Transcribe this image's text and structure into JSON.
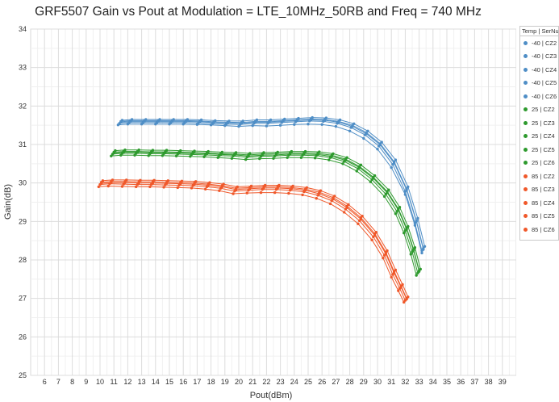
{
  "chart_data": {
    "type": "line",
    "title": "GRF5507 Gain vs Pout at Modulation = LTE_10MHz_50RB and Freq = 740 MHz",
    "xlabel": "Pout(dBm)",
    "ylabel": "Gain(dB)",
    "xlim": [
      5,
      40
    ],
    "ylim": [
      25,
      34
    ],
    "xticks": [
      6,
      7,
      8,
      9,
      10,
      11,
      12,
      13,
      14,
      15,
      16,
      17,
      18,
      19,
      20,
      21,
      22,
      23,
      24,
      25,
      26,
      27,
      28,
      29,
      30,
      31,
      32,
      33,
      34,
      35,
      36,
      37,
      38,
      39
    ],
    "yticks": [
      25,
      26,
      27,
      28,
      29,
      30,
      31,
      32,
      33,
      34
    ],
    "grid": true,
    "legend": {
      "title": "Temp | SerNum",
      "placement": "right"
    },
    "series": [
      {
        "name": "-40 | CZ2",
        "color": "#4f8ec6",
        "x": [
          11.3,
          12,
          13,
          14,
          15,
          16,
          17,
          18,
          19,
          20,
          21,
          22,
          23,
          24,
          25,
          26,
          27,
          28,
          29,
          30,
          31,
          32,
          32.7,
          33.2
        ],
        "y": [
          31.51,
          31.53,
          31.53,
          31.53,
          31.53,
          31.53,
          31.52,
          31.51,
          31.49,
          31.47,
          31.49,
          31.48,
          31.5,
          31.52,
          31.53,
          31.52,
          31.47,
          31.35,
          31.16,
          30.88,
          30.4,
          29.7,
          28.9,
          28.18
        ]
      },
      {
        "name": "-40 | CZ3",
        "color": "#4f8ec6",
        "x": [
          11.5,
          12.2,
          13.2,
          14.2,
          15.2,
          16.2,
          17.2,
          18.2,
          19.2,
          20.2,
          21.2,
          22.2,
          23.2,
          24.2,
          25.2,
          26.2,
          27.2,
          28.2,
          29.2,
          30.2,
          31.2,
          32.1,
          32.8,
          33.3
        ],
        "y": [
          31.6,
          31.62,
          31.62,
          31.62,
          31.62,
          31.62,
          31.61,
          31.59,
          31.58,
          31.57,
          31.6,
          31.6,
          31.62,
          31.64,
          31.66,
          31.65,
          31.6,
          31.5,
          31.31,
          31.02,
          30.55,
          29.85,
          29.02,
          28.3
        ]
      },
      {
        "name": "-40 | CZ4",
        "color": "#4f8ec6",
        "x": [
          11.6,
          12.3,
          13.3,
          14.3,
          15.3,
          16.3,
          17.3,
          18.3,
          19.3,
          20.3,
          21.3,
          22.3,
          23.3,
          24.3,
          25.3,
          26.3,
          27.3,
          28.3,
          29.3,
          30.3,
          31.3,
          32.2,
          32.9,
          33.4
        ],
        "y": [
          31.63,
          31.65,
          31.65,
          31.65,
          31.65,
          31.65,
          31.64,
          31.62,
          31.61,
          31.61,
          31.64,
          31.64,
          31.66,
          31.68,
          31.7,
          31.69,
          31.64,
          31.54,
          31.35,
          31.06,
          30.6,
          29.9,
          29.08,
          28.35
        ]
      },
      {
        "name": "-40 | CZ5",
        "color": "#4f8ec6",
        "x": [
          11.4,
          12.1,
          13.1,
          14.1,
          15.1,
          16.1,
          17.1,
          18.1,
          19.1,
          20.1,
          21.1,
          22.1,
          23.1,
          24.1,
          25.1,
          26.1,
          27.1,
          28.1,
          29.1,
          30.1,
          31.1,
          32,
          32.7,
          33.2
        ],
        "y": [
          31.55,
          31.57,
          31.57,
          31.57,
          31.57,
          31.57,
          31.56,
          31.54,
          31.53,
          31.52,
          31.55,
          31.55,
          31.57,
          31.59,
          31.61,
          31.6,
          31.55,
          31.44,
          31.25,
          30.96,
          30.48,
          29.78,
          28.96,
          28.24
        ]
      },
      {
        "name": "-40 | CZ6",
        "color": "#4f8ec6",
        "x": [
          11.5,
          12.2,
          13.2,
          14.2,
          15.2,
          16.2,
          17.2,
          18.2,
          19.2,
          20.2,
          21.2,
          22.2,
          23.2,
          24.2,
          25.2,
          26.2,
          27.2,
          28.2,
          29.2,
          30.2,
          31.2,
          32.1,
          32.8,
          33.3
        ],
        "y": [
          31.58,
          31.6,
          31.6,
          31.6,
          31.6,
          31.6,
          31.59,
          31.57,
          31.56,
          31.55,
          31.58,
          31.58,
          31.6,
          31.62,
          31.64,
          31.63,
          31.58,
          31.47,
          31.28,
          30.99,
          30.52,
          29.82,
          29,
          28.27
        ]
      },
      {
        "name": "25 | CZ2",
        "color": "#2e9a2e",
        "x": [
          10.8,
          11.5,
          12.5,
          13.5,
          14.5,
          15.5,
          16.5,
          17.5,
          18.5,
          19.5,
          20.5,
          21.5,
          22.5,
          23.5,
          24.5,
          25.5,
          26.5,
          27.5,
          28.5,
          29.5,
          30.5,
          31.3,
          31.9,
          32.4,
          32.8
        ],
        "y": [
          30.7,
          30.72,
          30.72,
          30.71,
          30.71,
          30.7,
          30.69,
          30.68,
          30.66,
          30.64,
          30.61,
          30.63,
          30.64,
          30.66,
          30.66,
          30.65,
          30.6,
          30.5,
          30.31,
          30.03,
          29.65,
          29.2,
          28.7,
          28.15,
          27.6
        ]
      },
      {
        "name": "25 | CZ3",
        "color": "#2e9a2e",
        "x": [
          11,
          11.7,
          12.7,
          13.7,
          14.7,
          15.7,
          16.7,
          17.7,
          18.7,
          19.7,
          20.7,
          21.7,
          22.7,
          23.7,
          24.7,
          25.7,
          26.7,
          27.7,
          28.7,
          29.7,
          30.7,
          31.5,
          32.1,
          32.6,
          33
        ],
        "y": [
          30.8,
          30.82,
          30.82,
          30.81,
          30.81,
          30.8,
          30.79,
          30.78,
          30.76,
          30.75,
          30.73,
          30.75,
          30.76,
          30.78,
          30.78,
          30.77,
          30.72,
          30.62,
          30.43,
          30.15,
          29.78,
          29.33,
          28.83,
          28.28,
          27.72
        ]
      },
      {
        "name": "25 | CZ4",
        "color": "#2e9a2e",
        "x": [
          11.1,
          11.8,
          12.8,
          13.8,
          14.8,
          15.8,
          16.8,
          17.8,
          18.8,
          19.8,
          20.8,
          21.8,
          22.8,
          23.8,
          24.8,
          25.8,
          26.8,
          27.8,
          28.8,
          29.8,
          30.8,
          31.6,
          32.2,
          32.7,
          33.1
        ],
        "y": [
          30.84,
          30.86,
          30.86,
          30.85,
          30.85,
          30.84,
          30.83,
          30.82,
          30.8,
          30.79,
          30.77,
          30.79,
          30.8,
          30.82,
          30.82,
          30.81,
          30.76,
          30.66,
          30.47,
          30.19,
          29.82,
          29.37,
          28.87,
          28.32,
          27.76
        ]
      },
      {
        "name": "25 | CZ5",
        "color": "#2e9a2e",
        "x": [
          10.9,
          11.6,
          12.6,
          13.6,
          14.6,
          15.6,
          16.6,
          17.6,
          18.6,
          19.6,
          20.6,
          21.6,
          22.6,
          23.6,
          24.6,
          25.6,
          26.6,
          27.6,
          28.6,
          29.6,
          30.6,
          31.4,
          32,
          32.5,
          32.9
        ],
        "y": [
          30.75,
          30.77,
          30.77,
          30.76,
          30.76,
          30.75,
          30.74,
          30.73,
          30.71,
          30.7,
          30.67,
          30.69,
          30.7,
          30.72,
          30.72,
          30.71,
          30.66,
          30.56,
          30.37,
          30.09,
          29.71,
          29.26,
          28.76,
          28.21,
          27.66
        ]
      },
      {
        "name": "25 | CZ6",
        "color": "#2e9a2e",
        "x": [
          11,
          11.7,
          12.7,
          13.7,
          14.7,
          15.7,
          16.7,
          17.7,
          18.7,
          19.7,
          20.7,
          21.7,
          22.7,
          23.7,
          24.7,
          25.7,
          26.7,
          27.7,
          28.7,
          29.7,
          30.7,
          31.5,
          32.1,
          32.6,
          33
        ],
        "y": [
          30.78,
          30.8,
          30.8,
          30.79,
          30.79,
          30.78,
          30.77,
          30.76,
          30.74,
          30.73,
          30.7,
          30.72,
          30.73,
          30.75,
          30.75,
          30.74,
          30.69,
          30.59,
          30.4,
          30.12,
          29.75,
          29.3,
          28.8,
          28.25,
          27.7
        ]
      },
      {
        "name": "85 | CZ2",
        "color": "#f0582a",
        "x": [
          9.9,
          10.6,
          11.6,
          12.6,
          13.6,
          14.6,
          15.6,
          16.6,
          17.6,
          18.6,
          19.6,
          20.6,
          21.6,
          22.6,
          23.6,
          24.6,
          25.6,
          26.6,
          27.6,
          28.6,
          29.6,
          30.4,
          31,
          31.5,
          31.9
        ],
        "y": [
          29.9,
          29.92,
          29.91,
          29.9,
          29.9,
          29.89,
          29.88,
          29.87,
          29.84,
          29.8,
          29.72,
          29.74,
          29.75,
          29.75,
          29.73,
          29.69,
          29.6,
          29.46,
          29.24,
          28.94,
          28.52,
          28.05,
          27.55,
          27.2,
          26.9
        ]
      },
      {
        "name": "85 | CZ3",
        "color": "#f0582a",
        "x": [
          10.1,
          10.8,
          11.8,
          12.8,
          13.8,
          14.8,
          15.8,
          16.8,
          17.8,
          18.8,
          19.8,
          20.8,
          21.8,
          22.8,
          23.8,
          24.8,
          25.8,
          26.8,
          27.8,
          28.8,
          29.8,
          30.6,
          31.2,
          31.7,
          32.1
        ],
        "y": [
          30.02,
          30.04,
          30.04,
          30.03,
          30.03,
          30.02,
          30.01,
          30,
          29.97,
          29.93,
          29.86,
          29.88,
          29.9,
          29.9,
          29.88,
          29.84,
          29.76,
          29.62,
          29.4,
          29.1,
          28.68,
          28.2,
          27.7,
          27.32,
          27
        ]
      },
      {
        "name": "85 | CZ4",
        "color": "#f0582a",
        "x": [
          10.2,
          10.9,
          11.9,
          12.9,
          13.9,
          14.9,
          15.9,
          16.9,
          17.9,
          18.9,
          19.9,
          20.9,
          21.9,
          22.9,
          23.9,
          24.9,
          25.9,
          26.9,
          27.9,
          28.9,
          29.9,
          30.7,
          31.3,
          31.8,
          32.2
        ],
        "y": [
          30.06,
          30.08,
          30.08,
          30.07,
          30.07,
          30.06,
          30.05,
          30.04,
          30.01,
          29.97,
          29.9,
          29.92,
          29.94,
          29.94,
          29.92,
          29.88,
          29.8,
          29.66,
          29.44,
          29.14,
          28.72,
          28.24,
          27.74,
          27.36,
          27.04
        ]
      },
      {
        "name": "85 | CZ5",
        "color": "#f0582a",
        "x": [
          10,
          10.7,
          11.7,
          12.7,
          13.7,
          14.7,
          15.7,
          16.7,
          17.7,
          18.7,
          19.7,
          20.7,
          21.7,
          22.7,
          23.7,
          24.7,
          25.7,
          26.7,
          27.7,
          28.7,
          29.7,
          30.5,
          31.1,
          31.6,
          32
        ],
        "y": [
          29.96,
          29.98,
          29.97,
          29.96,
          29.96,
          29.95,
          29.94,
          29.93,
          29.9,
          29.86,
          29.79,
          29.81,
          29.83,
          29.83,
          29.81,
          29.77,
          29.68,
          29.54,
          29.32,
          29.02,
          28.6,
          28.12,
          27.62,
          27.26,
          26.95
        ]
      },
      {
        "name": "85 | CZ6",
        "color": "#f0582a",
        "x": [
          10.1,
          10.8,
          11.8,
          12.8,
          13.8,
          14.8,
          15.8,
          16.8,
          17.8,
          18.8,
          19.8,
          20.8,
          21.8,
          22.8,
          23.8,
          24.8,
          25.8,
          26.8,
          27.8,
          28.8,
          29.8,
          30.6,
          31.2,
          31.7,
          32.1
        ],
        "y": [
          29.99,
          30.01,
          30.01,
          30,
          30,
          29.99,
          29.98,
          29.97,
          29.94,
          29.9,
          29.83,
          29.85,
          29.87,
          29.87,
          29.85,
          29.81,
          29.72,
          29.58,
          29.36,
          29.06,
          28.64,
          28.16,
          27.66,
          27.29,
          26.98
        ]
      }
    ]
  }
}
